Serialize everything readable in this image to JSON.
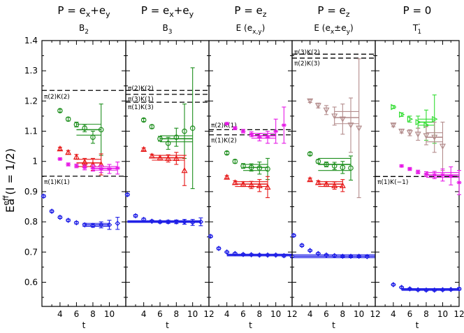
{
  "chart_data": {
    "type": "scatter",
    "ylabel_main": "E",
    "ylabel_sup": "eff",
    "ylabel_rest": "a   (I = 1/2)",
    "xlabel": "t",
    "ylim": [
      0.52,
      1.4
    ],
    "yticks": [
      0.6,
      0.7,
      0.8,
      0.9,
      1.0,
      1.1,
      1.2,
      1.3,
      1.4
    ],
    "ytick_labels": [
      "0.6",
      "0.7",
      "0.8",
      "0.9",
      "1",
      "1.1",
      "1.2",
      "1.3",
      "1.4"
    ],
    "colors": {
      "blue": "#1f1fe6",
      "red": "#e61919",
      "green": "#1f8f1f",
      "magenta": "#e619e6",
      "lightgreen": "#33dd33",
      "rosybrown": "#b38c8c",
      "dashed": "#000000"
    },
    "panels": [
      {
        "title_main": "P = e",
        "title_sub1": "x",
        "title_mid": "+e",
        "title_sub2": "y",
        "subtitle": "B",
        "subtitle_sub": "2",
        "xlim": [
          1.8,
          12
        ],
        "xticks": [
          4,
          6,
          8,
          10
        ],
        "xtick_labels": [
          "4",
          "6",
          "8",
          "10"
        ],
        "thresholds": [
          {
            "y": 1.235,
            "label": "π(2)K(2)",
            "label_y": 1.215
          },
          {
            "y": 0.951,
            "label": "π(1)K(1)",
            "label_y": 0.932
          }
        ],
        "series": [
          {
            "color": "blue",
            "marker": "diamond",
            "t": [
              2,
              3,
              4,
              5,
              6,
              7,
              8,
              9,
              10,
              11
            ],
            "y": [
              0.885,
              0.835,
              0.815,
              0.805,
              0.797,
              0.79,
              0.788,
              0.79,
              0.79,
              0.795
            ],
            "err": [
              0.004,
              0.004,
              0.004,
              0.004,
              0.004,
              0.005,
              0.006,
              0.01,
              0.015,
              0.02
            ],
            "fit": {
              "t0": 7,
              "t1": 10,
              "y": 0.79,
              "e": 0.005
            }
          },
          {
            "color": "green",
            "marker": "circle",
            "t": [
              4,
              5,
              6,
              7,
              8,
              9
            ],
            "y": [
              1.168,
              1.14,
              1.122,
              1.11,
              1.08,
              1.105
            ],
            "err": [
              0.005,
              0.006,
              0.008,
              0.012,
              0.02,
              0.085
            ],
            "fit": {
              "t0": 6,
              "t1": 9,
              "y": 1.105,
              "e": 0.018
            }
          },
          {
            "color": "red",
            "marker": "triangle",
            "t": [
              4,
              5,
              6,
              7,
              8,
              9
            ],
            "y": [
              1.042,
              1.03,
              1.015,
              0.998,
              0.99,
              0.99
            ],
            "err": [
              0.005,
              0.006,
              0.008,
              0.012,
              0.02,
              0.035
            ],
            "fit": {
              "t0": 6,
              "t1": 9,
              "y": 0.995,
              "e": 0.012
            }
          },
          {
            "color": "magenta",
            "marker": "star",
            "t": [
              4,
              5,
              6,
              7,
              8,
              9,
              10,
              11
            ],
            "y": [
              1.008,
              0.99,
              0.985,
              0.98,
              0.978,
              0.975,
              0.975,
              0.978
            ],
            "err": [
              0.004,
              0.005,
              0.006,
              0.008,
              0.01,
              0.012,
              0.015,
              0.02
            ],
            "fit": {
              "t0": 8,
              "t1": 11,
              "y": 0.977,
              "e": 0.006
            }
          }
        ]
      },
      {
        "title_main": "P = e",
        "title_sub1": "x",
        "title_mid": "+e",
        "title_sub2": "y",
        "subtitle": "B",
        "subtitle_sub": "3",
        "xlim": [
          1.8,
          12
        ],
        "xticks": [
          4,
          6,
          8,
          10,
          12
        ],
        "xtick_labels": [
          "4",
          "6",
          "8",
          "10",
          "12"
        ],
        "thresholds": [
          {
            "y": 1.235,
            "label": "π(2)K(2)",
            "label_y": 1.242
          },
          {
            "y": 1.222,
            "label": "π(3)K(1)",
            "label_y": 1.207
          },
          {
            "y": 1.196,
            "label": "π(1)K(3)",
            "label_y": 1.18
          }
        ],
        "series": [
          {
            "color": "blue",
            "marker": "diamond",
            "t": [
              2,
              3,
              4,
              5,
              6,
              7,
              8,
              9,
              10,
              11
            ],
            "y": [
              0.89,
              0.82,
              0.808,
              0.802,
              0.8,
              0.8,
              0.8,
              0.8,
              0.798,
              0.8
            ],
            "err": [
              0.004,
              0.004,
              0.004,
              0.004,
              0.004,
              0.005,
              0.006,
              0.008,
              0.01,
              0.013
            ],
            "fit": {
              "t0": 2,
              "t1": 11,
              "y": 0.801,
              "e": 0.003
            }
          },
          {
            "color": "green",
            "marker": "circle",
            "t": [
              4,
              5,
              6,
              7,
              8,
              9,
              10
            ],
            "y": [
              1.137,
              1.115,
              1.075,
              1.06,
              1.08,
              1.1,
              1.11
            ],
            "err": [
              0.005,
              0.006,
              0.008,
              0.02,
              0.03,
              0.09,
              0.2
            ],
            "fit": {
              "t0": 6,
              "t1": 10,
              "y": 1.075,
              "e": 0.01
            }
          },
          {
            "color": "red",
            "marker": "triangle",
            "t": [
              4,
              5,
              6,
              7,
              8,
              9
            ],
            "y": [
              1.04,
              1.018,
              1.012,
              1.01,
              1.01,
              0.97
            ],
            "err": [
              0.005,
              0.006,
              0.008,
              0.012,
              0.02,
              0.05
            ],
            "fit": {
              "t0": 5,
              "t1": 9,
              "y": 1.012,
              "e": 0.008
            }
          }
        ]
      },
      {
        "title_main": "P = e",
        "title_sub1": "z",
        "title_mid": "",
        "title_sub2": "",
        "subtitle": "E (e",
        "subtitle_sub": "x,y",
        "subtitle_end": ")",
        "xlim": [
          1.8,
          12
        ],
        "xticks": [
          4,
          6,
          8,
          10,
          12
        ],
        "xtick_labels": [
          "4",
          "6",
          "8",
          "10",
          "12"
        ],
        "thresholds": [
          {
            "y": 1.105,
            "label": "π(2)K(1)",
            "label_y": 1.12
          },
          {
            "y": 1.088,
            "label": "π(1)K(2)",
            "label_y": 1.07
          }
        ],
        "series": [
          {
            "color": "blue",
            "marker": "diamond",
            "t": [
              2,
              3,
              4,
              5,
              6,
              7,
              8,
              9,
              10,
              11,
              12
            ],
            "y": [
              0.752,
              0.712,
              0.7,
              0.695,
              0.692,
              0.691,
              0.69,
              0.69,
              0.69,
              0.688,
              0.686
            ],
            "err": [
              0.004,
              0.004,
              0.003,
              0.003,
              0.003,
              0.003,
              0.003,
              0.003,
              0.003,
              0.004,
              0.005
            ],
            "fit": {
              "t0": 4,
              "t1": 12,
              "y": 0.69,
              "e": 0.003
            }
          },
          {
            "color": "green",
            "marker": "circle",
            "t": [
              4,
              5,
              6,
              7,
              8,
              9
            ],
            "y": [
              1.028,
              1.0,
              0.985,
              0.98,
              0.978,
              0.975
            ],
            "err": [
              0.005,
              0.006,
              0.008,
              0.012,
              0.02,
              0.035
            ],
            "fit": {
              "t0": 6,
              "t1": 9,
              "y": 0.98,
              "e": 0.01
            }
          },
          {
            "color": "red",
            "marker": "triangle",
            "t": [
              4,
              5,
              6,
              7,
              8,
              9
            ],
            "y": [
              0.948,
              0.93,
              0.925,
              0.922,
              0.92,
              0.915
            ],
            "err": [
              0.005,
              0.006,
              0.008,
              0.012,
              0.02,
              0.035
            ],
            "fit": {
              "t0": 5,
              "t1": 9,
              "y": 0.925,
              "e": 0.008
            }
          },
          {
            "color": "magenta",
            "marker": "star",
            "t": [
              4,
              5,
              6,
              7,
              8,
              9,
              10,
              11
            ],
            "y": [
              1.125,
              1.11,
              1.1,
              1.09,
              1.08,
              1.08,
              1.1,
              1.12
            ],
            "err": [
              0.004,
              0.005,
              0.006,
              0.008,
              0.012,
              0.02,
              0.04,
              0.06
            ],
            "fit": {
              "t0": 7,
              "t1": 10,
              "y": 1.085,
              "e": 0.008
            }
          }
        ]
      },
      {
        "title_main": "P = e",
        "title_sub1": "z",
        "title_mid": "",
        "title_sub2": "",
        "subtitle": "E (e",
        "subtitle_sub": "x",
        "subtitle_end": "±e",
        "subtitle_sub2": "y",
        "subtitle_end2": ")",
        "xlim": [
          1.8,
          12
        ],
        "xticks": [
          4,
          6,
          8,
          10,
          12
        ],
        "xtick_labels": [
          "4",
          "6",
          "8",
          "10",
          "12"
        ],
        "thresholds": [
          {
            "y": 1.355,
            "label": "π(3)K(2)",
            "label_y": 1.362
          },
          {
            "y": 1.342,
            "label": "π(2)K(3)",
            "label_y": 1.325
          }
        ],
        "series": [
          {
            "color": "blue",
            "marker": "diamond",
            "t": [
              2,
              3,
              4,
              5,
              6,
              7,
              8,
              9,
              10,
              11
            ],
            "y": [
              0.755,
              0.722,
              0.705,
              0.695,
              0.69,
              0.688,
              0.686,
              0.686,
              0.686,
              0.685
            ],
            "err": [
              0.004,
              0.004,
              0.003,
              0.003,
              0.003,
              0.003,
              0.003,
              0.003,
              0.003,
              0.004
            ],
            "fit": {
              "t0": 2,
              "t1": 12,
              "y": 0.686,
              "e": 0.005
            }
          },
          {
            "color": "green",
            "marker": "circle",
            "t": [
              4,
              5,
              6,
              7,
              8,
              9
            ],
            "y": [
              1.025,
              1.0,
              0.99,
              0.985,
              0.98,
              0.978
            ],
            "err": [
              0.005,
              0.006,
              0.008,
              0.012,
              0.02,
              0.04
            ],
            "fit": {
              "t0": 5,
              "t1": 9,
              "y": 0.99,
              "e": 0.02
            }
          },
          {
            "color": "red",
            "marker": "triangle",
            "t": [
              4,
              5,
              6,
              7,
              8
            ],
            "y": [
              0.94,
              0.93,
              0.925,
              0.92,
              0.92
            ],
            "err": [
              0.005,
              0.006,
              0.008,
              0.012,
              0.02
            ],
            "fit": {
              "t0": 5,
              "t1": 8,
              "y": 0.925,
              "e": 0.008
            }
          },
          {
            "color": "rosybrown",
            "marker": "triangle-down",
            "t": [
              4,
              5,
              6,
              7,
              8,
              9,
              10
            ],
            "y": [
              1.2,
              1.185,
              1.17,
              1.15,
              1.14,
              1.12,
              1.11
            ],
            "err": [
              0.005,
              0.008,
              0.015,
              0.03,
              0.05,
              0.09,
              0.23
            ],
            "fit": {
              "t0": 7,
              "t1": 10,
              "y": 1.145,
              "e": 0.02
            }
          }
        ]
      },
      {
        "title_main": "P = 0",
        "title_sub1": "",
        "title_mid": "",
        "title_sub2": "",
        "subtitle": "T",
        "subtitle_sub": "1",
        "subtitle_sup": "-",
        "xlim": [
          1.8,
          12
        ],
        "xticks": [
          4,
          6,
          8,
          10,
          12
        ],
        "xtick_labels": [
          "4",
          "6",
          "8",
          "10",
          "12"
        ],
        "thresholds": [
          {
            "y": 0.95,
            "label": "π(1)K(−1)",
            "label_y": 0.932
          }
        ],
        "series": [
          {
            "color": "blue",
            "marker": "diamond",
            "t": [
              4,
              5,
              6,
              7,
              8,
              9,
              10,
              11,
              12
            ],
            "y": [
              0.592,
              0.583,
              0.578,
              0.575,
              0.574,
              0.574,
              0.575,
              0.576,
              0.578
            ],
            "err": [
              0.003,
              0.003,
              0.003,
              0.003,
              0.003,
              0.003,
              0.003,
              0.003,
              0.004
            ],
            "fit": {
              "t0": 5,
              "t1": 12,
              "y": 0.576,
              "e": 0.003
            }
          },
          {
            "color": "lightgreen",
            "marker": "triangle-right",
            "t": [
              4,
              5,
              6,
              7,
              8,
              9
            ],
            "y": [
              1.18,
              1.155,
              1.14,
              1.13,
              1.12,
              1.14
            ],
            "err": [
              0.005,
              0.006,
              0.01,
              0.02,
              0.05,
              0.08
            ],
            "fit": {
              "t0": 7,
              "t1": 9,
              "y": 1.13,
              "e": 0.01
            }
          },
          {
            "color": "rosybrown",
            "marker": "triangle-down",
            "t": [
              4,
              5,
              6,
              7,
              8,
              9,
              10
            ],
            "y": [
              1.12,
              1.1,
              1.095,
              1.09,
              1.085,
              1.08,
              1.05
            ],
            "err": [
              0.005,
              0.006,
              0.01,
              0.02,
              0.03,
              0.05,
              0.08
            ],
            "fit": {
              "t0": 8,
              "t1": 10,
              "y": 1.08,
              "e": 0.015
            }
          },
          {
            "color": "magenta",
            "marker": "star",
            "t": [
              5,
              6,
              7,
              8,
              9,
              10,
              11,
              12
            ],
            "y": [
              0.985,
              0.975,
              0.965,
              0.958,
              0.955,
              0.955,
              0.952,
              0.93
            ],
            "err": [
              0.004,
              0.005,
              0.006,
              0.008,
              0.012,
              0.02,
              0.03,
              0.04
            ],
            "fit": {
              "t0": 8,
              "t1": 12,
              "y": 0.955,
              "e": 0.008
            }
          }
        ]
      }
    ]
  }
}
